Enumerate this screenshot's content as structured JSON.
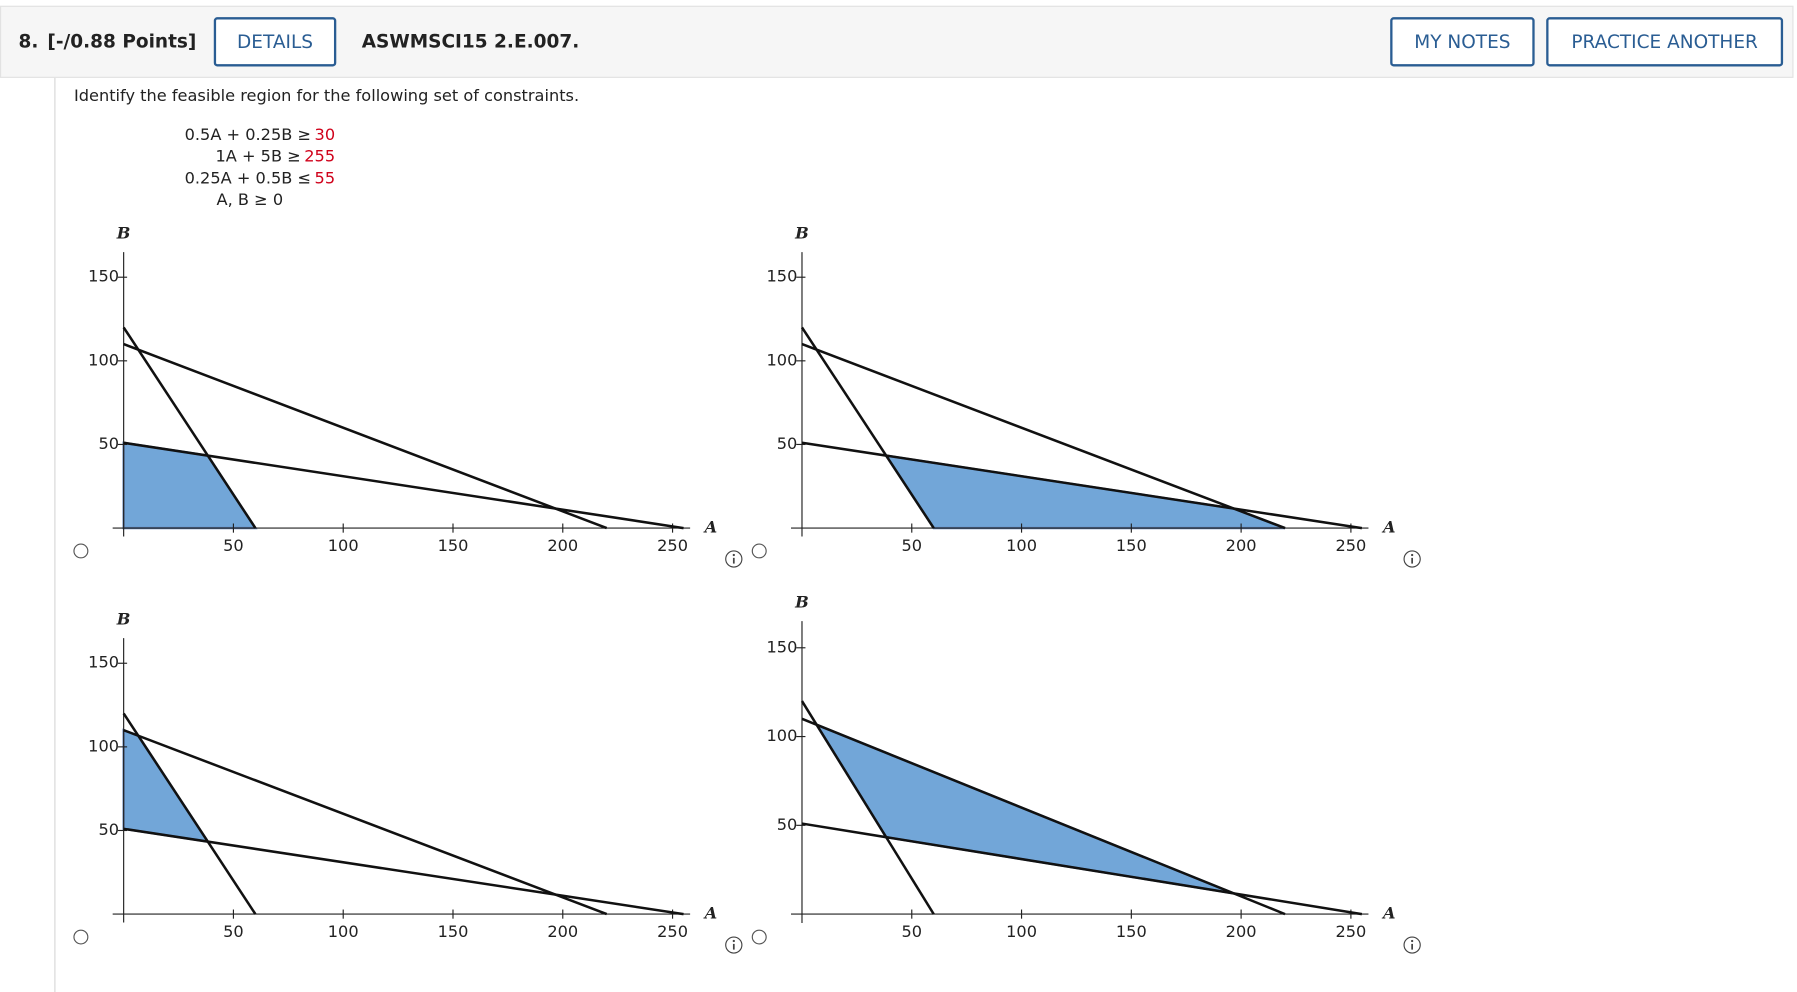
{
  "header": {
    "number": "8.",
    "points": "[-/0.88 Points]",
    "details": "DETAILS",
    "code": "ASWMSCI15 2.E.007.",
    "my_notes": "MY NOTES",
    "practice": "PRACTICE ANOTHER"
  },
  "question": "Identify the feasible region for the following set of constraints.",
  "constraints": [
    {
      "lhs": "0.5A + 0.25B ≥",
      "rhs": "30"
    },
    {
      "lhs": "1A + 5B ≥",
      "rhs": "255"
    },
    {
      "lhs": "0.25A + 0.5B ≤",
      "rhs": "55"
    },
    {
      "lhs": "A, B ≥ 0"
    }
  ],
  "chart_data": [
    {
      "type": "line",
      "x_label": "A",
      "y_label": "B",
      "xlim": [
        -5,
        258
      ],
      "ylim": [
        0,
        165
      ],
      "xticks": [
        50,
        100,
        150,
        200,
        250
      ],
      "yticks": [
        50,
        100,
        150
      ],
      "lines": [
        {
          "x": [
            0,
            60
          ],
          "values": [
            120,
            0
          ]
        },
        {
          "x": [
            0,
            255
          ],
          "values": [
            51,
            0
          ]
        },
        {
          "x": [
            0,
            220
          ],
          "values": [
            110,
            0
          ]
        }
      ],
      "region": {
        "x": [
          0,
          38.33,
          60,
          0
        ],
        "values": [
          51,
          43.33,
          0,
          0
        ]
      }
    },
    {
      "type": "line",
      "x_label": "A",
      "y_label": "B",
      "xlim": [
        -5,
        258
      ],
      "ylim": [
        0,
        165
      ],
      "xticks": [
        50,
        100,
        150,
        200,
        250
      ],
      "yticks": [
        50,
        100,
        150
      ],
      "lines": [
        {
          "x": [
            0,
            60
          ],
          "values": [
            120,
            0
          ]
        },
        {
          "x": [
            0,
            255
          ],
          "values": [
            51,
            0
          ]
        },
        {
          "x": [
            0,
            220
          ],
          "values": [
            110,
            0
          ]
        }
      ],
      "region": {
        "x": [
          38.33,
          196.67,
          220,
          60
        ],
        "values": [
          43.33,
          11.67,
          0,
          0
        ]
      }
    },
    {
      "type": "line",
      "x_label": "A",
      "y_label": "B",
      "xlim": [
        -5,
        258
      ],
      "ylim": [
        0,
        165
      ],
      "xticks": [
        50,
        100,
        150,
        200,
        250
      ],
      "yticks": [
        50,
        100,
        150
      ],
      "lines": [
        {
          "x": [
            0,
            60
          ],
          "values": [
            120,
            0
          ]
        },
        {
          "x": [
            0,
            255
          ],
          "values": [
            51,
            0
          ]
        },
        {
          "x": [
            0,
            220
          ],
          "values": [
            110,
            0
          ]
        }
      ],
      "region": {
        "x": [
          0,
          6.67,
          38.33,
          0
        ],
        "values": [
          110,
          106.67,
          43.33,
          51
        ]
      }
    },
    {
      "type": "line",
      "x_label": "A",
      "y_label": "B",
      "xlim": [
        -5,
        258
      ],
      "ylim": [
        0,
        165
      ],
      "xticks": [
        50,
        100,
        150,
        200,
        250
      ],
      "yticks": [
        50,
        100,
        150
      ],
      "lines": [
        {
          "x": [
            0,
            60
          ],
          "values": [
            120,
            0
          ]
        },
        {
          "x": [
            0,
            255
          ],
          "values": [
            51,
            0
          ]
        },
        {
          "x": [
            0,
            220
          ],
          "values": [
            110,
            0
          ]
        }
      ],
      "region": {
        "x": [
          6.67,
          196.67,
          38.33
        ],
        "values": [
          106.67,
          11.67,
          43.33
        ]
      }
    }
  ]
}
